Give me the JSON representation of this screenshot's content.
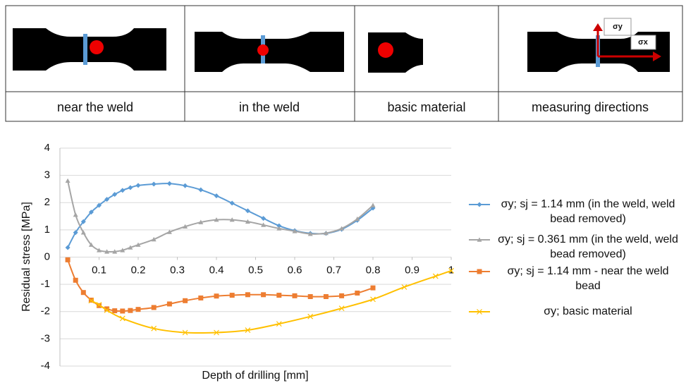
{
  "panels": [
    {
      "caption": "near the weld"
    },
    {
      "caption": "in the weld"
    },
    {
      "caption": "basic material"
    },
    {
      "caption": "measuring directions",
      "labels": [
        "σy",
        "σx"
      ]
    }
  ],
  "chart_data": {
    "type": "line",
    "y_label": "Residual stress [MPa]",
    "x_label": "Depth of drilling [mm]",
    "xlim": [
      0,
      1
    ],
    "ylim": [
      -4,
      4
    ],
    "xticks": [
      0.1,
      0.2,
      0.3,
      0.4,
      0.5,
      0.6,
      0.7,
      0.8,
      0.9,
      1
    ],
    "yticks": [
      -4,
      -3,
      -2,
      -1,
      0,
      1,
      2,
      3,
      4
    ],
    "grid": true,
    "series": [
      {
        "name": "σy; sj = 1.14 mm (in the weld, weld bead removed)",
        "color": "#5b9bd5",
        "marker": "diamond",
        "x": [
          0.02,
          0.04,
          0.06,
          0.08,
          0.1,
          0.12,
          0.14,
          0.16,
          0.18,
          0.2,
          0.24,
          0.28,
          0.32,
          0.36,
          0.4,
          0.44,
          0.48,
          0.52,
          0.56,
          0.6,
          0.64,
          0.68,
          0.72,
          0.76,
          0.8
        ],
        "values": [
          0.35,
          0.9,
          1.3,
          1.65,
          1.9,
          2.12,
          2.3,
          2.45,
          2.55,
          2.63,
          2.68,
          2.7,
          2.62,
          2.47,
          2.25,
          1.98,
          1.7,
          1.42,
          1.15,
          0.97,
          0.87,
          0.87,
          1.02,
          1.35,
          1.8
        ]
      },
      {
        "name": "σy; sj = 0.361 mm (in the weld, weld bead removed)",
        "color": "#a5a5a5",
        "marker": "triangle",
        "x": [
          0.02,
          0.04,
          0.06,
          0.08,
          0.1,
          0.12,
          0.14,
          0.16,
          0.18,
          0.2,
          0.24,
          0.28,
          0.32,
          0.36,
          0.4,
          0.44,
          0.48,
          0.52,
          0.56,
          0.6,
          0.64,
          0.68,
          0.72,
          0.76,
          0.8
        ],
        "values": [
          2.8,
          1.55,
          0.9,
          0.45,
          0.25,
          0.2,
          0.2,
          0.25,
          0.35,
          0.45,
          0.65,
          0.92,
          1.12,
          1.28,
          1.37,
          1.37,
          1.3,
          1.18,
          1.05,
          0.95,
          0.85,
          0.88,
          1.05,
          1.4,
          1.9
        ]
      },
      {
        "name": "σy; sj = 1.14 mm - near the weld bead",
        "color": "#ed7d31",
        "marker": "square",
        "x": [
          0.02,
          0.04,
          0.06,
          0.08,
          0.1,
          0.12,
          0.14,
          0.16,
          0.18,
          0.2,
          0.24,
          0.28,
          0.32,
          0.36,
          0.4,
          0.44,
          0.48,
          0.52,
          0.56,
          0.6,
          0.64,
          0.68,
          0.72,
          0.76,
          0.8
        ],
        "values": [
          -0.1,
          -0.85,
          -1.3,
          -1.58,
          -1.78,
          -1.9,
          -1.97,
          -1.98,
          -1.96,
          -1.92,
          -1.85,
          -1.72,
          -1.6,
          -1.5,
          -1.43,
          -1.4,
          -1.38,
          -1.38,
          -1.4,
          -1.42,
          -1.45,
          -1.45,
          -1.42,
          -1.32,
          -1.13
        ]
      },
      {
        "name": "σy; basic material",
        "color": "#ffc000",
        "marker": "cross",
        "x": [
          0.08,
          0.1,
          0.12,
          0.16,
          0.24,
          0.32,
          0.4,
          0.48,
          0.56,
          0.64,
          0.72,
          0.8,
          0.88,
          0.96,
          1.0
        ],
        "values": [
          -1.6,
          -1.75,
          -1.95,
          -2.25,
          -2.62,
          -2.77,
          -2.77,
          -2.68,
          -2.45,
          -2.18,
          -1.88,
          -1.55,
          -1.1,
          -0.7,
          -0.5
        ]
      }
    ]
  }
}
